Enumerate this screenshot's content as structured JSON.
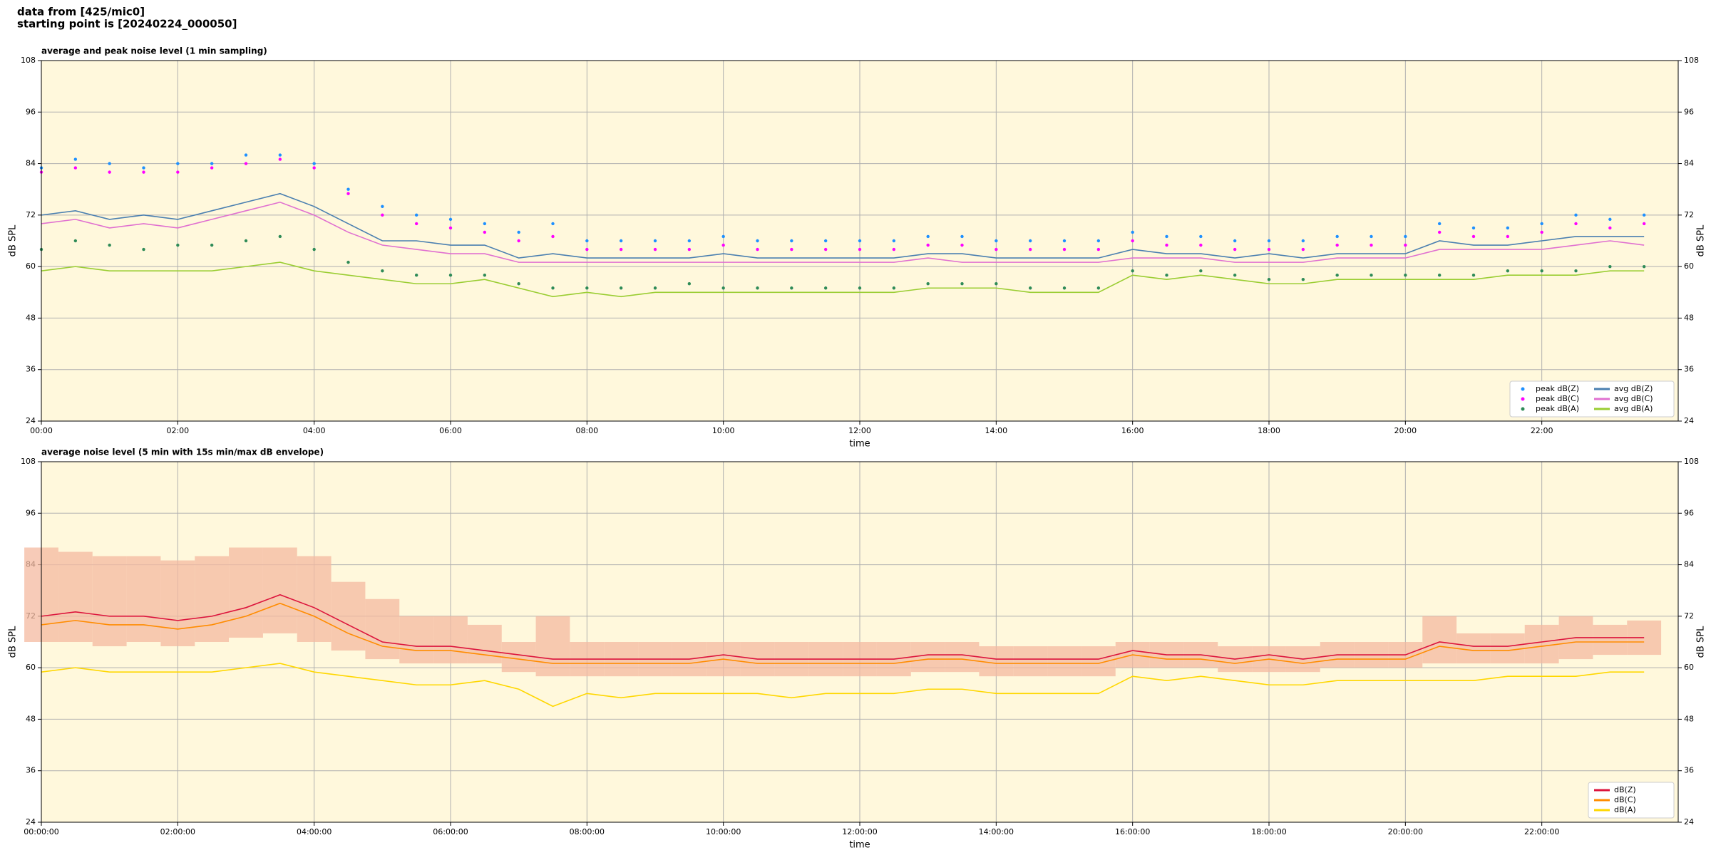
{
  "header": {
    "line1": "data from [425/mic0]",
    "line2": "starting point is [20240224_000050]"
  },
  "chart_data": [
    {
      "type": "line",
      "title": "average and peak noise level (1 min sampling)",
      "xlabel": "time",
      "ylabel": "dB SPL",
      "xlim": [
        0,
        24
      ],
      "ylim": [
        24,
        108
      ],
      "yticks": [
        24,
        36,
        48,
        60,
        72,
        84,
        96,
        108
      ],
      "xticks": [
        {
          "value": 0,
          "label": "00:00"
        },
        {
          "value": 2,
          "label": "02:00"
        },
        {
          "value": 4,
          "label": "04:00"
        },
        {
          "value": 6,
          "label": "06:00"
        },
        {
          "value": 8,
          "label": "08:00"
        },
        {
          "value": 10,
          "label": "10:00"
        },
        {
          "value": 12,
          "label": "12:00"
        },
        {
          "value": 14,
          "label": "14:00"
        },
        {
          "value": 16,
          "label": "16:00"
        },
        {
          "value": 18,
          "label": "18:00"
        },
        {
          "value": 20,
          "label": "20:00"
        },
        {
          "value": 22,
          "label": "22:00"
        }
      ],
      "grid": true,
      "right_axis": true,
      "legend": "lower right",
      "legend_columns": 2,
      "background": "#fff8dc",
      "x": [
        0,
        0.5,
        1,
        1.5,
        2,
        2.5,
        3,
        3.5,
        4,
        4.5,
        5,
        5.5,
        6,
        6.5,
        7,
        7.5,
        8,
        8.5,
        9,
        9.5,
        10,
        10.5,
        11,
        11.5,
        12,
        12.5,
        13,
        13.5,
        14,
        14.5,
        15,
        15.5,
        16,
        16.5,
        17,
        17.5,
        18,
        18.5,
        19,
        19.5,
        20,
        20.5,
        21,
        21.5,
        22,
        22.5,
        23,
        23.5
      ],
      "series": [
        {
          "name": "peak dB(Z)",
          "color": "#1e90ff",
          "style": "points",
          "values": [
            83,
            85,
            84,
            83,
            84,
            84,
            86,
            86,
            84,
            78,
            74,
            72,
            71,
            70,
            68,
            70,
            66,
            66,
            66,
            66,
            67,
            66,
            66,
            66,
            66,
            66,
            67,
            67,
            66,
            66,
            66,
            66,
            68,
            67,
            67,
            66,
            66,
            66,
            67,
            67,
            67,
            70,
            69,
            69,
            70,
            72,
            71,
            72
          ]
        },
        {
          "name": "peak dB(C)",
          "color": "#ff00ff",
          "style": "points",
          "values": [
            82,
            83,
            82,
            82,
            82,
            83,
            84,
            85,
            83,
            77,
            72,
            70,
            69,
            68,
            66,
            67,
            64,
            64,
            64,
            64,
            65,
            64,
            64,
            64,
            64,
            64,
            65,
            65,
            64,
            64,
            64,
            64,
            66,
            65,
            65,
            64,
            64,
            64,
            65,
            65,
            65,
            68,
            67,
            67,
            68,
            70,
            69,
            70
          ]
        },
        {
          "name": "peak dB(A)",
          "color": "#2e8b57",
          "style": "points",
          "values": [
            64,
            66,
            65,
            64,
            65,
            65,
            66,
            67,
            64,
            61,
            59,
            58,
            58,
            58,
            56,
            55,
            55,
            55,
            55,
            56,
            55,
            55,
            55,
            55,
            55,
            55,
            56,
            56,
            56,
            55,
            55,
            55,
            59,
            58,
            59,
            58,
            57,
            57,
            58,
            58,
            58,
            58,
            58,
            59,
            59,
            59,
            60,
            60
          ]
        },
        {
          "name": "avg dB(Z)",
          "color": "#4a7fb0",
          "style": "line",
          "values": [
            72,
            73,
            71,
            72,
            71,
            73,
            75,
            77,
            74,
            70,
            66,
            66,
            65,
            65,
            62,
            63,
            62,
            62,
            62,
            62,
            63,
            62,
            62,
            62,
            62,
            62,
            63,
            63,
            62,
            62,
            62,
            62,
            64,
            63,
            63,
            62,
            63,
            62,
            63,
            63,
            63,
            66,
            65,
            65,
            66,
            67,
            67,
            67
          ]
        },
        {
          "name": "avg dB(C)",
          "color": "#e070d0",
          "style": "line",
          "values": [
            70,
            71,
            69,
            70,
            69,
            71,
            73,
            75,
            72,
            68,
            65,
            64,
            63,
            63,
            61,
            61,
            61,
            61,
            61,
            61,
            61,
            61,
            61,
            61,
            61,
            61,
            62,
            61,
            61,
            61,
            61,
            61,
            62,
            62,
            62,
            61,
            61,
            61,
            62,
            62,
            62,
            64,
            64,
            64,
            64,
            65,
            66,
            65
          ]
        },
        {
          "name": "avg dB(A)",
          "color": "#9acd32",
          "style": "line",
          "values": [
            59,
            60,
            59,
            59,
            59,
            59,
            60,
            61,
            59,
            58,
            57,
            56,
            56,
            57,
            55,
            53,
            54,
            53,
            54,
            54,
            54,
            54,
            54,
            54,
            54,
            54,
            55,
            55,
            55,
            54,
            54,
            54,
            58,
            57,
            58,
            57,
            56,
            56,
            57,
            57,
            57,
            57,
            57,
            58,
            58,
            58,
            59,
            59
          ]
        }
      ]
    },
    {
      "type": "line",
      "title": "average noise level (5 min with 15s min/max dB envelope)",
      "xlabel": "time",
      "ylabel": "dB SPL",
      "xlim": [
        0,
        24
      ],
      "ylim": [
        24,
        108
      ],
      "yticks": [
        24,
        36,
        48,
        60,
        72,
        84,
        96,
        108
      ],
      "xticks": [
        {
          "value": 0,
          "label": "00:00:00"
        },
        {
          "value": 2,
          "label": "02:00:00"
        },
        {
          "value": 4,
          "label": "04:00:00"
        },
        {
          "value": 6,
          "label": "06:00:00"
        },
        {
          "value": 8,
          "label": "08:00:00"
        },
        {
          "value": 10,
          "label": "10:00:00"
        },
        {
          "value": 12,
          "label": "12:00:00"
        },
        {
          "value": 14,
          "label": "14:00:00"
        },
        {
          "value": 16,
          "label": "16:00:00"
        },
        {
          "value": 18,
          "label": "18:00:00"
        },
        {
          "value": 20,
          "label": "20:00:00"
        },
        {
          "value": 22,
          "label": "22:00:00"
        }
      ],
      "grid": true,
      "right_axis": true,
      "legend": "lower right",
      "legend_columns": 1,
      "background": "#fff8dc",
      "x": [
        0,
        0.5,
        1,
        1.5,
        2,
        2.5,
        3,
        3.5,
        4,
        4.5,
        5,
        5.5,
        6,
        6.5,
        7,
        7.5,
        8,
        8.5,
        9,
        9.5,
        10,
        10.5,
        11,
        11.5,
        12,
        12.5,
        13,
        13.5,
        14,
        14.5,
        15,
        15.5,
        16,
        16.5,
        17,
        17.5,
        18,
        18.5,
        19,
        19.5,
        20,
        20.5,
        21,
        21.5,
        22,
        22.5,
        23,
        23.5
      ],
      "envelope": {
        "color": "#f4b9a0",
        "max": [
          88,
          87,
          86,
          86,
          85,
          86,
          88,
          88,
          86,
          80,
          76,
          72,
          72,
          70,
          66,
          72,
          66,
          66,
          66,
          66,
          66,
          66,
          66,
          66,
          66,
          66,
          66,
          66,
          65,
          65,
          65,
          65,
          66,
          66,
          66,
          65,
          65,
          65,
          66,
          66,
          66,
          72,
          68,
          68,
          70,
          72,
          70,
          71
        ],
        "min": [
          66,
          66,
          65,
          66,
          65,
          66,
          67,
          68,
          66,
          64,
          62,
          61,
          61,
          61,
          59,
          58,
          58,
          58,
          58,
          58,
          58,
          58,
          58,
          58,
          58,
          58,
          59,
          59,
          58,
          58,
          58,
          58,
          60,
          60,
          60,
          59,
          59,
          59,
          60,
          60,
          60,
          61,
          61,
          61,
          61,
          62,
          63,
          63
        ]
      },
      "series": [
        {
          "name": "dB(Z)",
          "color": "#dc143c",
          "style": "line",
          "values": [
            72,
            73,
            72,
            72,
            71,
            72,
            74,
            77,
            74,
            70,
            66,
            65,
            65,
            64,
            63,
            62,
            62,
            62,
            62,
            62,
            63,
            62,
            62,
            62,
            62,
            62,
            63,
            63,
            62,
            62,
            62,
            62,
            64,
            63,
            63,
            62,
            63,
            62,
            63,
            63,
            63,
            66,
            65,
            65,
            66,
            67,
            67,
            67
          ]
        },
        {
          "name": "dB(C)",
          "color": "#ff8c00",
          "style": "line",
          "values": [
            70,
            71,
            70,
            70,
            69,
            70,
            72,
            75,
            72,
            68,
            65,
            64,
            64,
            63,
            62,
            61,
            61,
            61,
            61,
            61,
            62,
            61,
            61,
            61,
            61,
            61,
            62,
            62,
            61,
            61,
            61,
            61,
            63,
            62,
            62,
            61,
            62,
            61,
            62,
            62,
            62,
            65,
            64,
            64,
            65,
            66,
            66,
            66
          ]
        },
        {
          "name": "dB(A)",
          "color": "#ffd700",
          "style": "line",
          "values": [
            59,
            60,
            59,
            59,
            59,
            59,
            60,
            61,
            59,
            58,
            57,
            56,
            56,
            57,
            55,
            51,
            54,
            53,
            54,
            54,
            54,
            54,
            53,
            54,
            54,
            54,
            55,
            55,
            54,
            54,
            54,
            54,
            58,
            57,
            58,
            57,
            56,
            56,
            57,
            57,
            57,
            57,
            57,
            58,
            58,
            58,
            59,
            59
          ]
        }
      ]
    }
  ]
}
